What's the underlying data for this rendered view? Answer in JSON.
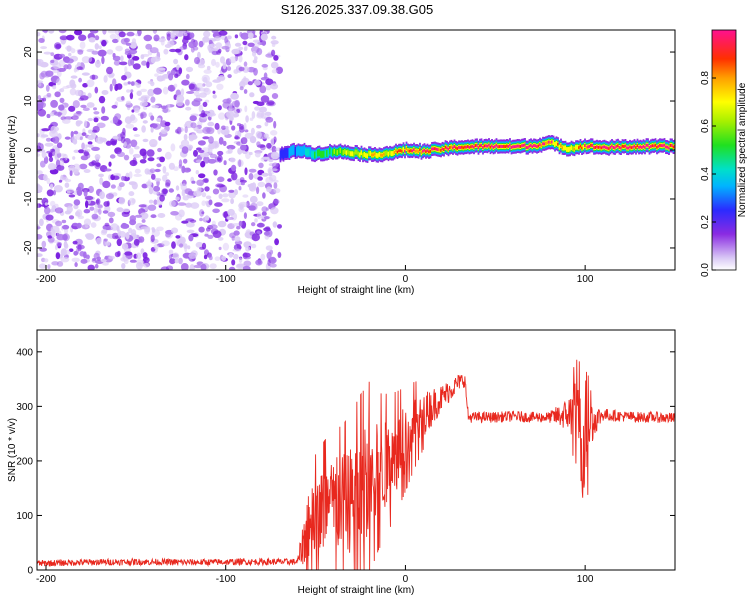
{
  "chart_data": [
    {
      "type": "heatmap",
      "title": "S126.2025.337.09.38.G05",
      "xlabel": "Height of straight line (km)",
      "ylabel": "Frequency (Hz)",
      "xlim": [
        -205,
        150
      ],
      "ylim": [
        -24.5,
        24.5
      ],
      "xticks": [
        -200,
        -100,
        0,
        100
      ],
      "yticks": [
        -20,
        -10,
        0,
        10,
        20
      ],
      "grid": false,
      "description_series": {
        "noise_region_km": [
          -205,
          -70
        ],
        "signal_line": {
          "x": [
            -70,
            -60,
            -50,
            -40,
            -30,
            -20,
            -10,
            0,
            10,
            20,
            30,
            40,
            50,
            60,
            70,
            80,
            90,
            100,
            110,
            120,
            130,
            140,
            150
          ],
          "freq_hz": [
            -1.0,
            0.0,
            -0.8,
            -0.3,
            -0.5,
            -1.0,
            -0.7,
            0.0,
            -0.3,
            0.2,
            0.6,
            0.7,
            0.8,
            0.7,
            0.8,
            1.5,
            0.3,
            0.8,
            0.5,
            0.6,
            0.7,
            0.7,
            0.7
          ],
          "amplitude": [
            0.2,
            0.3,
            0.4,
            0.5,
            0.6,
            0.65,
            0.7,
            0.8,
            0.85,
            0.9,
            0.92,
            0.95,
            0.97,
            0.97,
            0.97,
            0.8,
            0.6,
            0.85,
            0.95,
            0.97,
            0.97,
            0.97,
            0.97
          ]
        }
      },
      "colorbar": {
        "label": "Normalized spectral amplitude",
        "range": [
          0.0,
          1.0
        ],
        "ticks": [
          0.0,
          0.2,
          0.4,
          0.6,
          0.8
        ]
      }
    },
    {
      "type": "line",
      "xlabel": "Height of straight line (km)",
      "ylabel": "SNR (10 * v/v)",
      "xlim": [
        -205,
        150
      ],
      "ylim": [
        0,
        440
      ],
      "xticks": [
        -200,
        -100,
        0,
        100
      ],
      "yticks": [
        0,
        100,
        200,
        300,
        400
      ],
      "grid": false,
      "series": [
        {
          "name": "SNR",
          "color": "#e8281e",
          "x": [
            -205,
            -180,
            -150,
            -120,
            -90,
            -70,
            -60,
            -55,
            -50,
            -45,
            -40,
            -35,
            -30,
            -25,
            -20,
            -15,
            -10,
            -5,
            0,
            5,
            10,
            15,
            20,
            25,
            30,
            33,
            35,
            40,
            50,
            60,
            70,
            80,
            90,
            95,
            98,
            100,
            102,
            105,
            110,
            120,
            130,
            140,
            150
          ],
          "y": [
            12,
            14,
            15,
            14,
            15,
            15,
            15,
            70,
            100,
            110,
            115,
            120,
            130,
            145,
            170,
            180,
            195,
            215,
            240,
            265,
            285,
            300,
            315,
            330,
            345,
            350,
            280,
            280,
            280,
            282,
            280,
            280,
            285,
            290,
            220,
            260,
            290,
            275,
            285,
            282,
            280,
            280,
            278
          ],
          "noise_amplitude": [
            6,
            6,
            6,
            6,
            6,
            6,
            6,
            60,
            70,
            80,
            90,
            90,
            100,
            110,
            110,
            90,
            80,
            70,
            60,
            50,
            40,
            35,
            25,
            20,
            15,
            15,
            10,
            10,
            10,
            10,
            10,
            10,
            30,
            60,
            100,
            120,
            80,
            30,
            12,
            10,
            10,
            10,
            10
          ]
        }
      ]
    }
  ]
}
